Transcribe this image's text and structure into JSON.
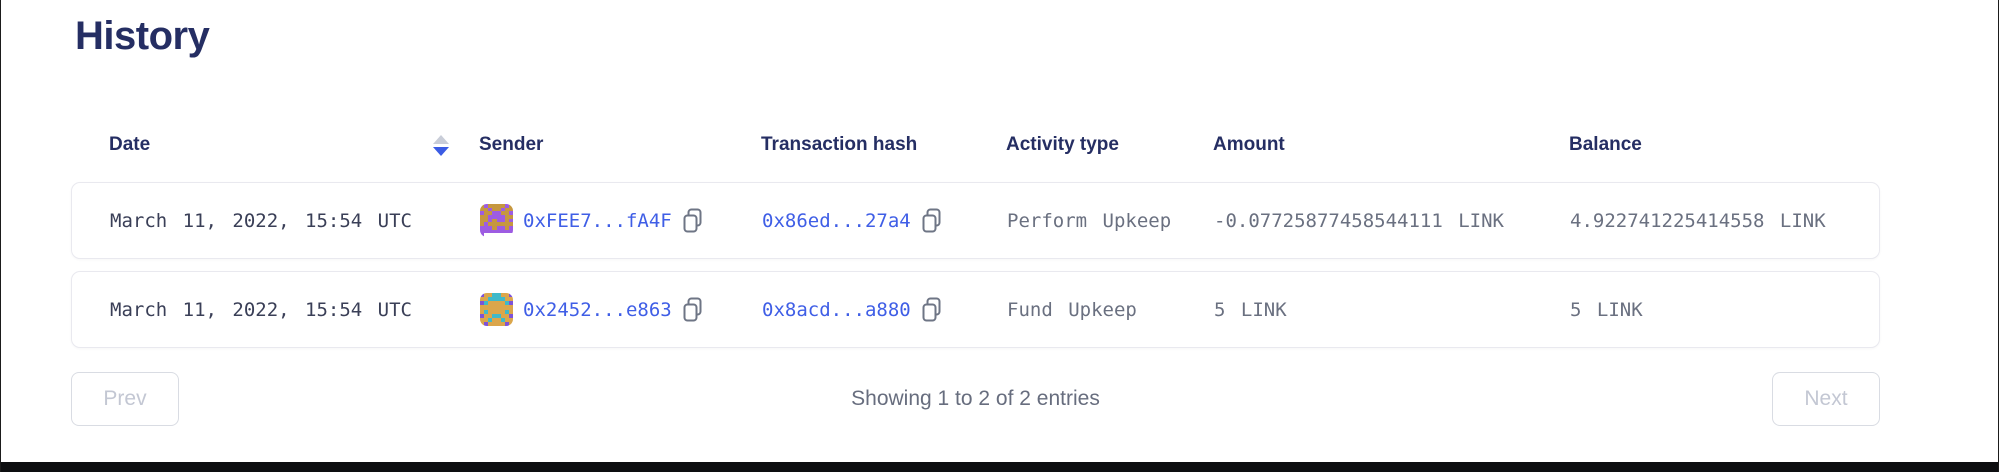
{
  "page": {
    "title": "History",
    "accent_navy": "#252e63",
    "link_blue": "#3f5ee6",
    "bottom_bar_color": "#0d0e10"
  },
  "table": {
    "columns": [
      {
        "label": "Date",
        "sortable": true,
        "sort_direction": "desc"
      },
      {
        "label": "Sender"
      },
      {
        "label": "Transaction hash"
      },
      {
        "label": "Activity type"
      },
      {
        "label": "Amount"
      },
      {
        "label": "Balance"
      }
    ],
    "rows": [
      {
        "date": "March 11, 2022, 15:54 UTC",
        "sender": {
          "address_short": "0xFEE7...fA4F",
          "avatar": {
            "palette": {
              "g": "#c6973f",
              "p": "#9d5ce2"
            },
            "pixels": [
              "gpggggpg",
              "ggpggpgg",
              "pggppggp",
              "ggpppp gg",
              "gpgppgpg",
              "pggggggp",
              "ppgppgpp",
              "pppppppp"
            ]
          }
        },
        "tx_hash_short": "0x86ed...27a4",
        "activity_type": "Perform Upkeep",
        "amount": "-0.07725877458544111 LINK",
        "balance": "4.922741225414558 LINK"
      },
      {
        "date": "March 11, 2022, 15:54 UTC",
        "sender": {
          "address_short": "0x2452...e863",
          "avatar": {
            "palette": {
              "o": "#dba64b",
              "t": "#3fb9c9",
              "p": "#7e52d8"
            },
            "pixels": [
              "poottoop",
              "oottttoo",
              "ptoooOtp",
              "oooooooo",
              "otoooOto",
              "poottoop",
              "ootootoo",
              "opooooPo"
            ]
          }
        },
        "tx_hash_short": "0x8acd...a880",
        "activity_type": "Fund Upkeep",
        "amount": "5 LINK",
        "balance": "5 LINK"
      }
    ]
  },
  "pagination": {
    "prev_label": "Prev",
    "next_label": "Next",
    "status": "Showing 1 to 2 of 2 entries"
  }
}
